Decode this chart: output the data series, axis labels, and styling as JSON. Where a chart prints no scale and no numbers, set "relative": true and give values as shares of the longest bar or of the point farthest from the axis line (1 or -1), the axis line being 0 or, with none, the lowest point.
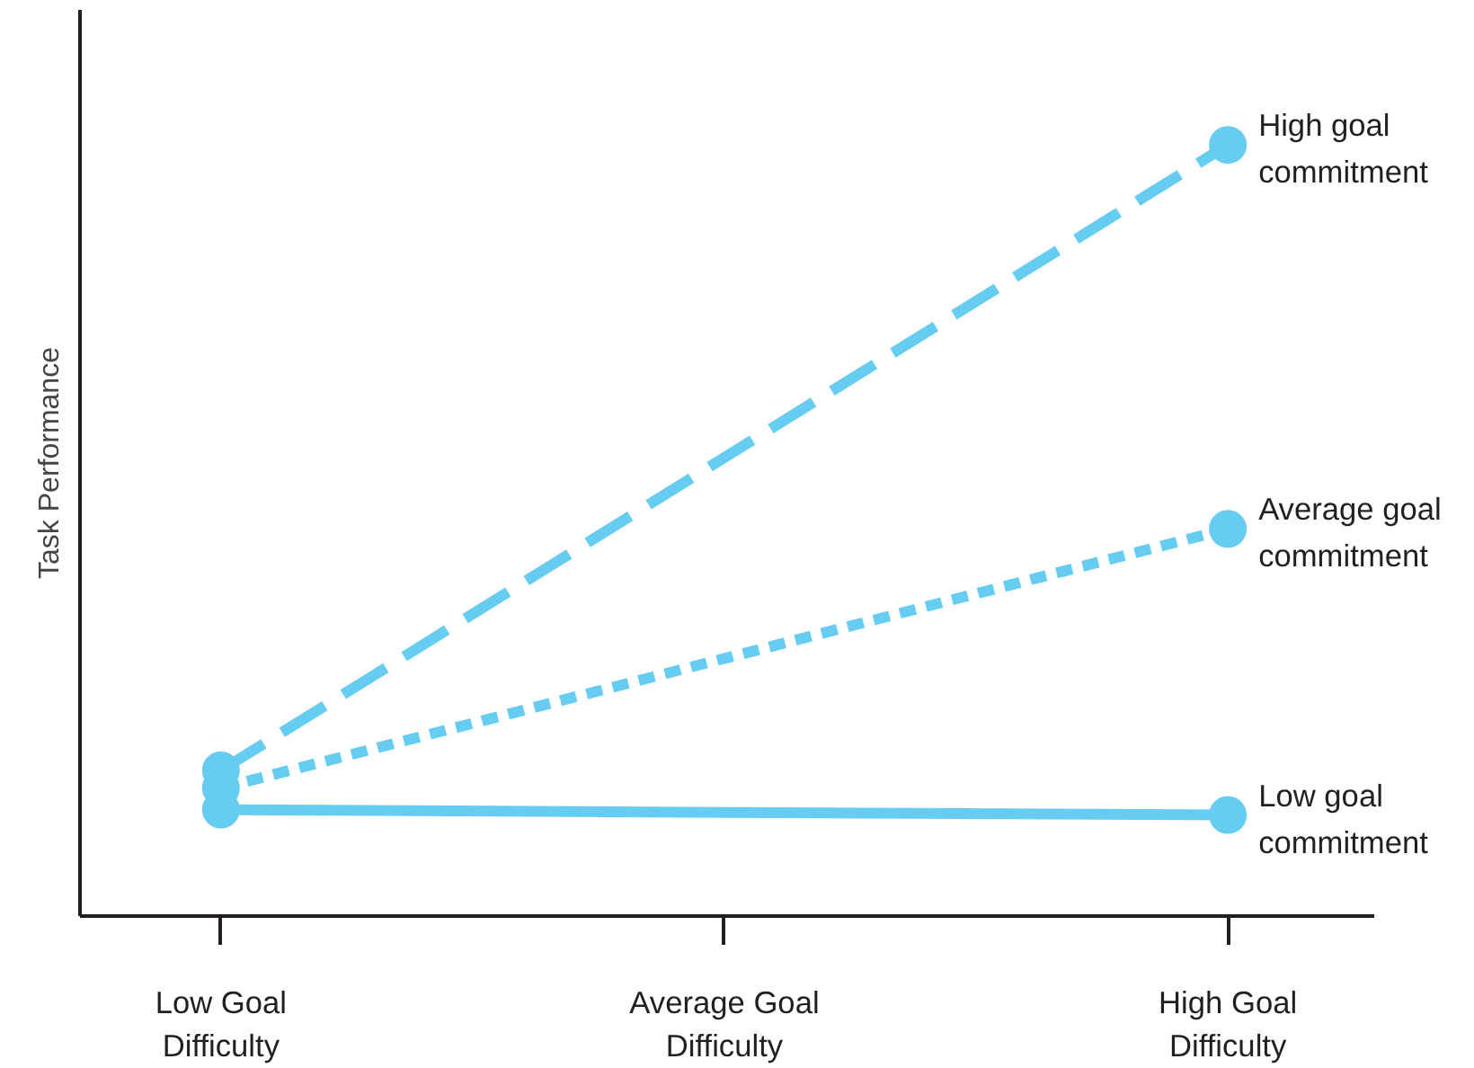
{
  "chart_data": {
    "type": "line",
    "relative": true,
    "ylabel": "Task Performance",
    "categories": [
      "Low Goal\nDifficulty",
      "Average Goal\nDifficulty",
      "High Goal\nDifficulty"
    ],
    "series": [
      {
        "name": "High goal\ncommitment",
        "color": "#66ccf2",
        "line_style": "dashed",
        "values": [
          0.189,
          null,
          1
        ]
      },
      {
        "name": "Average goal\ncommitment",
        "color": "#66ccf2",
        "line_style": "dotted",
        "values": [
          0.166,
          null,
          0.502
        ]
      },
      {
        "name": "Low goal\ncommitment",
        "color": "#66ccf2",
        "line_style": "solid",
        "values": [
          0.138,
          null,
          0.131
        ]
      }
    ],
    "marker": "circle",
    "tick_labels": "x",
    "grid": false,
    "legend": false
  }
}
